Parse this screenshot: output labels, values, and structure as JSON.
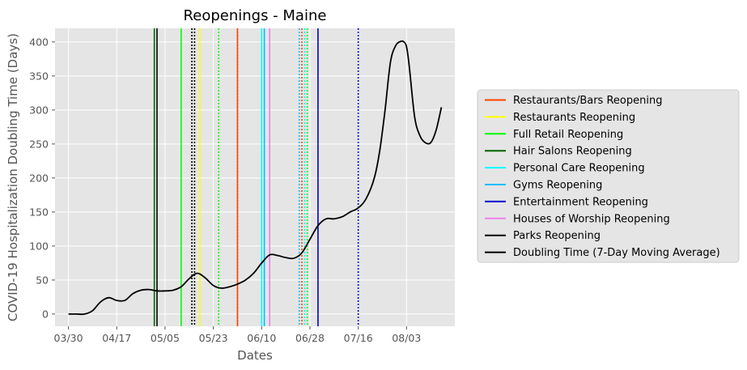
{
  "chart_data": {
    "type": "line",
    "title": "Reopenings - Maine",
    "xlabel": "Dates",
    "ylabel": "COVID-19 Hospitalization Doubling Time (Days)",
    "x_ticks": [
      "03/30",
      "04/17",
      "05/05",
      "05/23",
      "06/10",
      "06/28",
      "07/16",
      "08/03"
    ],
    "y_ticks": [
      0,
      50,
      100,
      150,
      200,
      250,
      300,
      350,
      400
    ],
    "xlim": [
      "2020-03-25",
      "2020-08-21"
    ],
    "ylim": [
      -18,
      420
    ],
    "grid": true,
    "legend_position": "right",
    "series": [
      {
        "name": "Doubling Time (7-Day Moving Average)",
        "color": "#000000",
        "x": [
          "2020-03-30",
          "2020-04-02",
          "2020-04-05",
          "2020-04-08",
          "2020-04-11",
          "2020-04-14",
          "2020-04-17",
          "2020-04-20",
          "2020-04-23",
          "2020-04-26",
          "2020-04-29",
          "2020-05-02",
          "2020-05-05",
          "2020-05-08",
          "2020-05-11",
          "2020-05-14",
          "2020-05-17",
          "2020-05-20",
          "2020-05-23",
          "2020-05-26",
          "2020-05-29",
          "2020-06-01",
          "2020-06-04",
          "2020-06-07",
          "2020-06-10",
          "2020-06-13",
          "2020-06-16",
          "2020-06-19",
          "2020-06-22",
          "2020-06-25",
          "2020-06-28",
          "2020-07-01",
          "2020-07-04",
          "2020-07-07",
          "2020-07-10",
          "2020-07-13",
          "2020-07-16",
          "2020-07-19",
          "2020-07-22",
          "2020-07-24",
          "2020-07-26",
          "2020-07-28",
          "2020-07-30",
          "2020-08-01",
          "2020-08-02",
          "2020-08-03",
          "2020-08-04",
          "2020-08-06",
          "2020-08-08",
          "2020-08-10",
          "2020-08-12",
          "2020-08-14",
          "2020-08-16"
        ],
        "y": [
          0,
          0,
          0,
          5,
          18,
          24,
          20,
          20,
          30,
          35,
          36,
          34,
          34,
          35,
          40,
          52,
          60,
          53,
          42,
          38,
          40,
          44,
          50,
          60,
          75,
          87,
          86,
          83,
          82,
          90,
          110,
          130,
          140,
          140,
          143,
          150,
          156,
          170,
          200,
          240,
          300,
          370,
          395,
          401,
          400,
          393,
          365,
          290,
          262,
          252,
          252,
          270,
          304
        ]
      }
    ],
    "vlines": [
      {
        "name": "Restaurants/Bars Reopening",
        "color": "#ff4500",
        "style": "solid",
        "dates": [
          "2020-06-01"
        ],
        "dotted_dates": [
          "2020-06-01"
        ]
      },
      {
        "name": "Restaurants Reopening",
        "color": "#ffff00",
        "style": "solid",
        "dates": [
          "2020-05-18"
        ],
        "dotted_dates": []
      },
      {
        "name": "Full Retail Reopening",
        "color": "#00ff00",
        "style": "solid",
        "dates": [
          "2020-05-11"
        ],
        "dotted_dates": [
          "2020-05-25"
        ]
      },
      {
        "name": "Hair Salons Reopening",
        "color": "#006400",
        "style": "solid",
        "dates": [
          "2020-05-01"
        ],
        "dotted_dates": []
      },
      {
        "name": "Personal Care Reopening",
        "color": "#00ffff",
        "style": "solid",
        "dates": [
          "2020-06-10"
        ],
        "dotted_dates": [
          "2020-06-26"
        ]
      },
      {
        "name": "Gyms Reopening",
        "color": "#00bfff",
        "style": "solid",
        "dates": [
          "2020-06-11"
        ],
        "dotted_dates": [
          "2020-06-24"
        ]
      },
      {
        "name": "Entertainment Reopening",
        "color": "#0000cd",
        "style": "solid",
        "dates": [
          "2020-07-01"
        ],
        "dotted_dates": [
          "2020-07-16"
        ]
      },
      {
        "name": "Houses of Worship Reopening",
        "color": "#ee82ee",
        "style": "solid",
        "dates": [
          "2020-06-13"
        ],
        "dotted_dates": [
          "2020-06-13"
        ]
      },
      {
        "name": "Parks Reopening",
        "color": "#000000",
        "style": "solid",
        "dates": [
          "2020-05-02"
        ],
        "dotted_dates": [
          "2020-05-15",
          "2020-05-16"
        ]
      }
    ],
    "extra_vlines": [
      {
        "color": "#ff4500",
        "style": "dotted",
        "date": "2020-06-25"
      },
      {
        "color": "#00ff00",
        "style": "dotted",
        "date": "2020-06-27"
      }
    ]
  }
}
